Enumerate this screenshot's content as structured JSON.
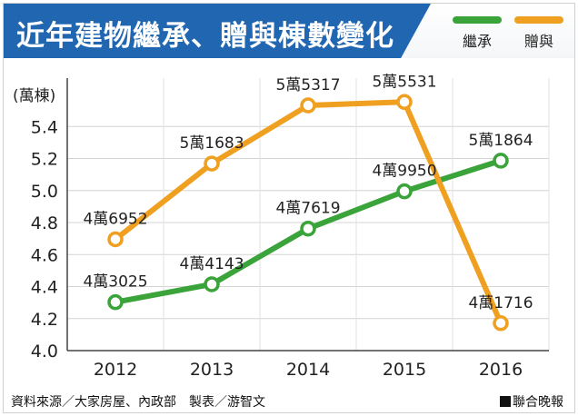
{
  "header": {
    "title": "近年建物繼承、贈與棟數變化"
  },
  "footer": {
    "source": "資料來源／大家房屋、內政部　製表／游智文",
    "brand": "聯合晚報"
  },
  "chart_data": {
    "type": "line",
    "title": "近年建物繼承、贈與棟數變化",
    "ylabel": "(萬棟)",
    "xlabel": "",
    "x": [
      "2012",
      "2013",
      "2014",
      "2015",
      "2016"
    ],
    "ylim": [
      4.0,
      5.6
    ],
    "yticks": [
      "4.0",
      "4.2",
      "4.4",
      "4.6",
      "4.8",
      "5.0",
      "5.2",
      "5.4"
    ],
    "grid": true,
    "legend_position": "top-right",
    "series": [
      {
        "name": "繼承",
        "color": "#3aa33a",
        "values": [
          4.3025,
          4.4143,
          4.7619,
          4.995,
          5.1864
        ],
        "labels": [
          "4萬3025",
          "4萬4143",
          "4萬7619",
          "4萬9950",
          "5萬1864"
        ]
      },
      {
        "name": "贈與",
        "color": "#f0a020",
        "values": [
          4.6952,
          5.1683,
          5.5317,
          5.5531,
          4.1716
        ],
        "labels": [
          "4萬6952",
          "5萬1683",
          "5萬5317",
          "5萬5531",
          "4萬1716"
        ]
      }
    ]
  }
}
